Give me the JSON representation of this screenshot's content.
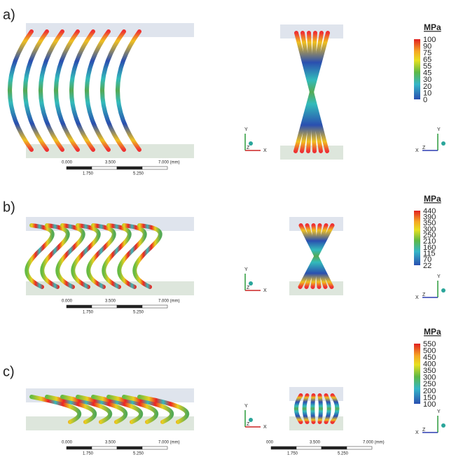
{
  "panels": [
    {
      "label": "a)",
      "legend": {
        "unit": "MPa",
        "ticks": [
          100,
          90,
          75,
          65,
          55,
          45,
          30,
          20,
          10,
          0
        ]
      },
      "scalebars": [
        {
          "top": [
            "0.000",
            "3.500",
            "7.000 (mm)"
          ],
          "bottom": [
            "1.750",
            "5.250"
          ]
        }
      ],
      "triads": [
        [
          "Y",
          "Z",
          "X"
        ],
        [
          "Y",
          "Z",
          "X"
        ]
      ]
    },
    {
      "label": "b)",
      "legend": {
        "unit": "MPa",
        "ticks": [
          440,
          390,
          350,
          300,
          250,
          210,
          160,
          115,
          70,
          22
        ]
      },
      "scalebars": [
        {
          "top": [
            "0.000",
            "3.500",
            "7.000 (mm)"
          ],
          "bottom": [
            "1.750",
            "5.250"
          ]
        }
      ],
      "triads": [
        [
          "Y",
          "Z",
          "X"
        ],
        [
          "Y",
          "Z",
          "X"
        ]
      ]
    },
    {
      "label": "c)",
      "legend": {
        "unit": "MPa",
        "ticks": [
          550,
          500,
          450,
          400,
          350,
          300,
          250,
          200,
          150,
          100
        ]
      },
      "scalebars": [
        {
          "top": [
            "0.000",
            "3.500",
            "7.000 (mm)"
          ],
          "bottom": [
            "1.750",
            "5.250"
          ]
        },
        {
          "top": [
            "000",
            "3.500",
            "7.000 (mm)"
          ],
          "bottom": [
            "1.750",
            "5.250"
          ]
        }
      ],
      "triads": [
        [
          "Y",
          "Z",
          "X"
        ],
        [
          "Y",
          "Z",
          "X"
        ]
      ]
    }
  ]
}
